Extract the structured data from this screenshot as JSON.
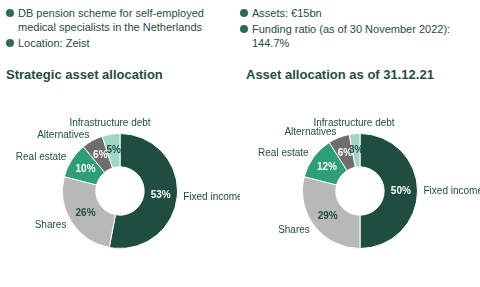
{
  "header": {
    "left": [
      "DB pension scheme for self-employed medical specialists in the Netherlands",
      "Location: Zeist"
    ],
    "right": [
      "Assets: €15bn",
      "Funding ratio (as of 30 November 2022): 144.7%"
    ]
  },
  "chart_data": [
    {
      "type": "doughnut",
      "title": "Strategic asset allocation",
      "categories": [
        "Fixed income",
        "Shares",
        "Real estate",
        "Alternatives",
        "Infrastructure debt"
      ],
      "values": [
        53,
        26,
        10,
        6,
        5
      ],
      "value_labels": [
        "53%",
        "26%",
        "10%",
        "6%",
        "5%"
      ],
      "colors": [
        "#1f4d3f",
        "#b8b8b8",
        "#2e9e78",
        "#6e6e6e",
        "#9fd6c5"
      ],
      "data_labels": true
    },
    {
      "type": "doughnut",
      "title": "Asset allocation as of 31.12.21",
      "categories": [
        "Fixed income",
        "Shares",
        "Real estate",
        "Alternatives",
        "Infrastructure debt"
      ],
      "values": [
        50,
        29,
        12,
        6,
        3
      ],
      "value_labels": [
        "50%",
        "29%",
        "12%",
        "6%",
        "3%"
      ],
      "colors": [
        "#1f4d3f",
        "#b8b8b8",
        "#2e9e78",
        "#6e6e6e",
        "#9fd6c5"
      ],
      "data_labels": true
    }
  ]
}
